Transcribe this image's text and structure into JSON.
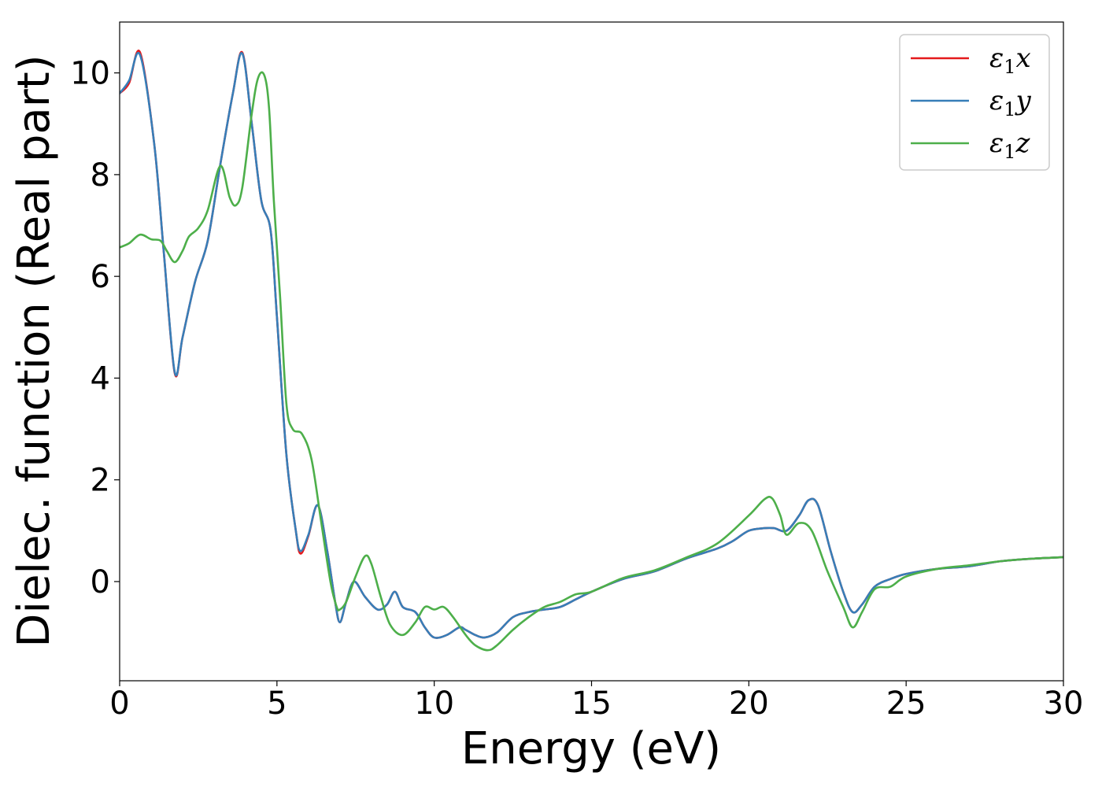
{
  "chart_data": {
    "type": "line",
    "xlabel": "Energy (eV)",
    "ylabel": "Dielec. function (Real part)",
    "xlim": [
      0,
      30
    ],
    "ylim": [
      -1.95,
      11.0
    ],
    "xticks": [
      0,
      5,
      10,
      15,
      20,
      25,
      30
    ],
    "xtick_labels": [
      "0",
      "5",
      "10",
      "15",
      "20",
      "25",
      "30"
    ],
    "yticks": [
      0,
      2,
      4,
      6,
      8,
      10
    ],
    "ytick_labels": [
      "0",
      "2",
      "4",
      "6",
      "8",
      "10"
    ],
    "grid": false,
    "legend_position": "top-right",
    "series": [
      {
        "name_base": "ε",
        "name_sub": "1",
        "name_suffix": "x",
        "color": "#e41a1c",
        "x": [
          0,
          0.3,
          0.65,
          1.1,
          1.4,
          1.75,
          2.0,
          2.4,
          2.8,
          3.2,
          3.6,
          3.9,
          4.2,
          4.5,
          4.8,
          5.0,
          5.3,
          5.6,
          5.75,
          6.0,
          6.3,
          6.6,
          6.85,
          7.0,
          7.2,
          7.45,
          7.8,
          8.2,
          8.5,
          8.75,
          9.0,
          9.4,
          9.7,
          10.0,
          10.4,
          10.8,
          11.0,
          11.3,
          11.6,
          12.0,
          12.5,
          13.0,
          13.5,
          14.0,
          14.5,
          15.0,
          16.0,
          17.0,
          18.0,
          19.0,
          19.5,
          20.0,
          20.5,
          20.8,
          21.2,
          21.6,
          21.9,
          22.2,
          22.6,
          23.0,
          23.3,
          23.6,
          24.0,
          24.5,
          25.0,
          26.0,
          27.0,
          28.0,
          29.0,
          30.0
        ],
        "values": [
          9.6,
          9.8,
          10.4,
          8.6,
          6.5,
          4.1,
          4.8,
          5.9,
          6.7,
          8.2,
          9.6,
          10.4,
          9.0,
          7.5,
          6.9,
          5.2,
          2.5,
          1.0,
          0.55,
          0.9,
          1.5,
          0.6,
          -0.4,
          -0.8,
          -0.4,
          0.0,
          -0.3,
          -0.55,
          -0.45,
          -0.2,
          -0.5,
          -0.6,
          -0.9,
          -1.1,
          -1.05,
          -0.9,
          -0.95,
          -1.05,
          -1.1,
          -1.0,
          -0.7,
          -0.6,
          -0.55,
          -0.5,
          -0.35,
          -0.2,
          0.05,
          0.2,
          0.45,
          0.65,
          0.8,
          1.0,
          1.05,
          1.05,
          1.0,
          1.3,
          1.6,
          1.5,
          0.6,
          -0.2,
          -0.6,
          -0.45,
          -0.1,
          0.05,
          0.15,
          0.25,
          0.3,
          0.4,
          0.45,
          0.48
        ]
      },
      {
        "name_base": "ε",
        "name_sub": "1",
        "name_suffix": "y",
        "color": "#377eb8",
        "x": [
          0,
          0.3,
          0.65,
          1.1,
          1.4,
          1.75,
          2.0,
          2.4,
          2.8,
          3.2,
          3.6,
          3.9,
          4.2,
          4.5,
          4.8,
          5.0,
          5.3,
          5.6,
          5.75,
          6.0,
          6.3,
          6.6,
          6.85,
          7.0,
          7.2,
          7.45,
          7.8,
          8.2,
          8.5,
          8.75,
          9.0,
          9.4,
          9.7,
          10.0,
          10.4,
          10.8,
          11.0,
          11.3,
          11.6,
          12.0,
          12.5,
          13.0,
          13.5,
          14.0,
          14.5,
          15.0,
          16.0,
          17.0,
          18.0,
          19.0,
          19.5,
          20.0,
          20.5,
          20.8,
          21.2,
          21.6,
          21.9,
          22.2,
          22.6,
          23.0,
          23.3,
          23.6,
          24.0,
          24.5,
          25.0,
          26.0,
          27.0,
          28.0,
          29.0,
          30.0
        ],
        "values": [
          9.6,
          9.85,
          10.35,
          8.6,
          6.5,
          4.12,
          4.8,
          5.9,
          6.7,
          8.2,
          9.6,
          10.38,
          9.0,
          7.5,
          6.9,
          5.2,
          2.5,
          1.0,
          0.6,
          0.92,
          1.5,
          0.6,
          -0.4,
          -0.8,
          -0.4,
          0.0,
          -0.3,
          -0.55,
          -0.45,
          -0.2,
          -0.5,
          -0.6,
          -0.9,
          -1.1,
          -1.05,
          -0.9,
          -0.95,
          -1.05,
          -1.1,
          -1.0,
          -0.7,
          -0.6,
          -0.55,
          -0.5,
          -0.35,
          -0.2,
          0.05,
          0.2,
          0.45,
          0.65,
          0.8,
          1.0,
          1.05,
          1.05,
          1.0,
          1.3,
          1.6,
          1.5,
          0.6,
          -0.2,
          -0.6,
          -0.45,
          -0.1,
          0.05,
          0.15,
          0.25,
          0.3,
          0.4,
          0.45,
          0.48
        ]
      },
      {
        "name_base": "ε",
        "name_sub": "1",
        "name_suffix": "z",
        "color": "#4daf4a",
        "x": [
          0,
          0.3,
          0.65,
          1.0,
          1.3,
          1.5,
          1.75,
          2.0,
          2.2,
          2.5,
          2.8,
          3.2,
          3.5,
          3.7,
          3.9,
          4.2,
          4.4,
          4.6,
          4.75,
          4.9,
          5.1,
          5.3,
          5.5,
          5.8,
          6.1,
          6.4,
          6.7,
          6.9,
          7.0,
          7.2,
          7.5,
          7.8,
          8.0,
          8.3,
          8.6,
          9.0,
          9.4,
          9.7,
          10.0,
          10.3,
          10.6,
          11.0,
          11.3,
          11.7,
          12.0,
          12.5,
          13.0,
          13.5,
          14.0,
          14.5,
          15.0,
          16.0,
          17.0,
          18.0,
          19.0,
          20.0,
          20.5,
          20.75,
          21.0,
          21.2,
          21.6,
          22.0,
          22.5,
          23.0,
          23.3,
          23.6,
          24.0,
          24.5,
          25.0,
          26.0,
          27.0,
          28.0,
          29.0,
          30.0
        ],
        "values": [
          6.57,
          6.65,
          6.82,
          6.73,
          6.7,
          6.5,
          6.28,
          6.5,
          6.78,
          6.95,
          7.3,
          8.17,
          7.55,
          7.4,
          7.75,
          9.2,
          9.9,
          9.95,
          9.3,
          7.5,
          5.6,
          3.5,
          3.0,
          2.9,
          2.4,
          1.2,
          0.0,
          -0.5,
          -0.55,
          -0.4,
          0.1,
          0.5,
          0.35,
          -0.3,
          -0.85,
          -1.05,
          -0.8,
          -0.5,
          -0.55,
          -0.5,
          -0.7,
          -1.05,
          -1.25,
          -1.35,
          -1.25,
          -0.95,
          -0.7,
          -0.5,
          -0.4,
          -0.25,
          -0.2,
          0.07,
          0.22,
          0.47,
          0.75,
          1.3,
          1.62,
          1.63,
          1.3,
          0.92,
          1.15,
          1.0,
          0.2,
          -0.5,
          -0.9,
          -0.6,
          -0.15,
          -0.1,
          0.1,
          0.25,
          0.32,
          0.4,
          0.45,
          0.48
        ]
      }
    ]
  }
}
